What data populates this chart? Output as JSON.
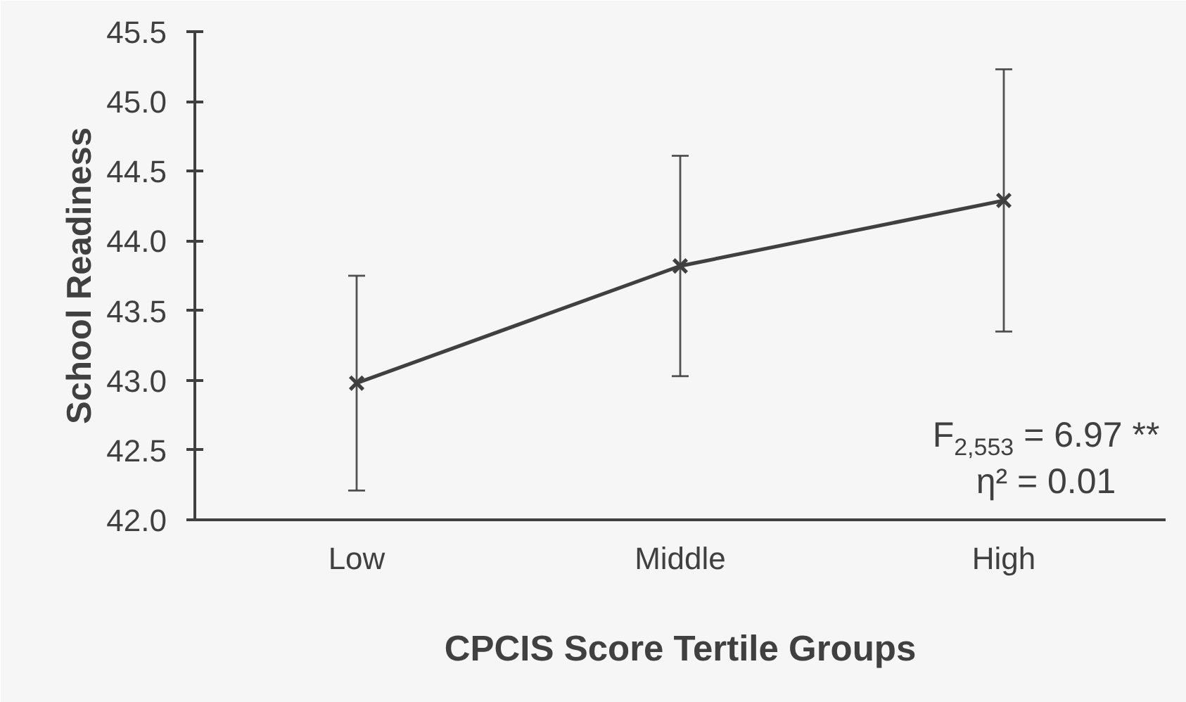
{
  "chart_data": {
    "type": "line",
    "xlabel": "CPCIS Score Tertile Groups",
    "ylabel": "School Readiness",
    "categories": [
      "Low",
      "Middle",
      "High"
    ],
    "series": [
      {
        "color": "#404040",
        "values": [
          42.98,
          43.82,
          44.29
        ],
        "errors": [
          0.77,
          0.79,
          0.94
        ]
      }
    ],
    "ylim": [
      42.0,
      45.5
    ],
    "yticks": [
      {
        "value": 42,
        "label": "42.0"
      },
      42.5,
      {
        "value": 43,
        "label": "43.0"
      },
      43.5,
      {
        "value": 44,
        "label": "44.0"
      },
      44.5,
      {
        "value": 45,
        "label": "45.0"
      },
      45.5
    ],
    "marker": "cross",
    "grid": false,
    "annotations": [
      "F$_{2,553}$ = 6.97 **",
      "η² = 0.01"
    ]
  }
}
